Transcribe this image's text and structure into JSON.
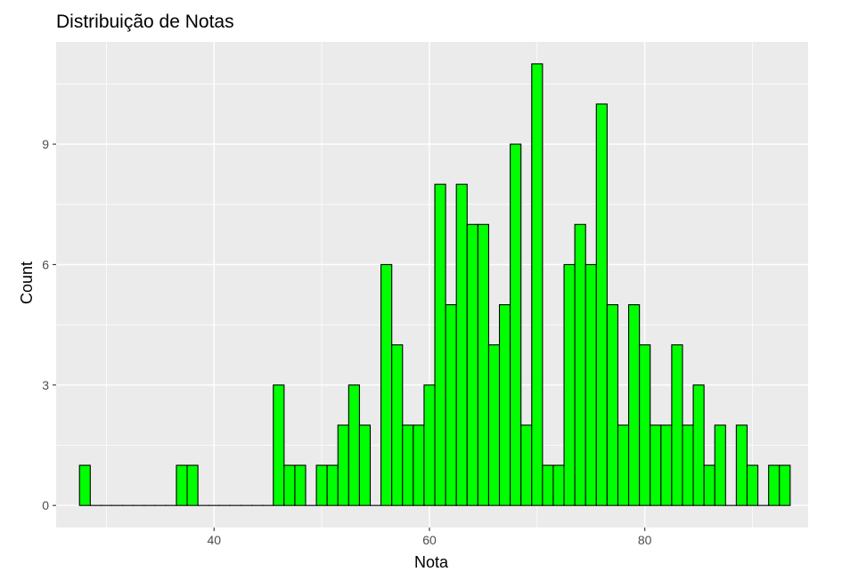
{
  "chart_data": {
    "type": "bar",
    "title": "Distribuição de Notas",
    "xlabel": "Nota",
    "ylabel": "Count",
    "xlim": [
      25.33,
      95.17
    ],
    "ylim": [
      -0.55,
      11.55
    ],
    "x_ticks": [
      40,
      60,
      80
    ],
    "y_ticks": [
      0,
      3,
      6,
      9
    ],
    "x_minor_ticks": [
      30,
      50,
      70,
      90
    ],
    "y_minor_ticks": [
      1.5,
      4.5,
      7.5,
      10.5
    ],
    "grid": true,
    "bin_width": 1,
    "bin_start": 27.5,
    "values": [
      1,
      0,
      0,
      0,
      0,
      0,
      0,
      0,
      0,
      1,
      1,
      0,
      0,
      0,
      0,
      0,
      0,
      0,
      3,
      1,
      1,
      0,
      1,
      1,
      2,
      3,
      2,
      0,
      6,
      4,
      2,
      2,
      3,
      8,
      5,
      8,
      7,
      7,
      4,
      5,
      9,
      2,
      11,
      1,
      1,
      6,
      7,
      6,
      10,
      5,
      2,
      5,
      4,
      2,
      2,
      4,
      2,
      3,
      1,
      2,
      0,
      2,
      1,
      0,
      1,
      1
    ],
    "fill_color": "#00ff00",
    "edge_color": "#000000",
    "panel_color": "#ebebeb",
    "grid_color": "#ffffff"
  }
}
